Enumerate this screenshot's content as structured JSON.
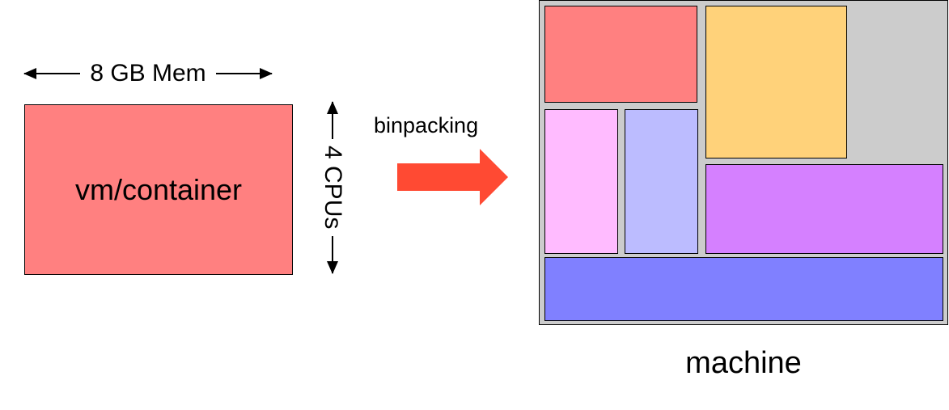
{
  "vm": {
    "label": "vm/container",
    "mem_label": "8 GB Mem",
    "cpu_label": "4 CPUs",
    "color": "#ff8080"
  },
  "transition": {
    "label": "binpacking",
    "arrow_color": "#ff4a33"
  },
  "machine": {
    "label": "machine",
    "background": "#cccccc",
    "slot_colors": {
      "red": "#ff8080",
      "yellow": "#ffd27a",
      "pink": "#ffbbff",
      "lavender": "#bcbcff",
      "purple": "#d580ff",
      "blue": "#8080ff"
    }
  }
}
